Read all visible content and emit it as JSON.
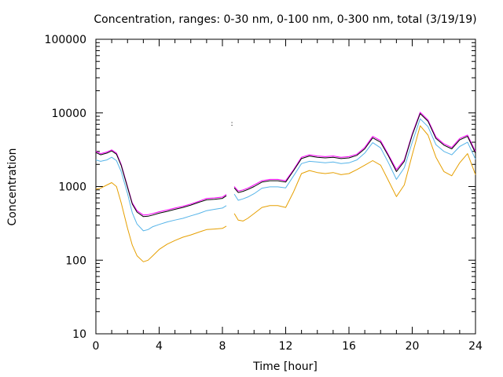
{
  "chart_data": {
    "type": "line",
    "title": "Concentration, ranges: 0-30 nm, 0-100 nm, 0-300 nm, total (3/19/19)",
    "xlabel": "Time [hour]",
    "ylabel": "Concentration",
    "xlim": [
      0,
      24
    ],
    "ylim": [
      10,
      100000
    ],
    "yscale": "log",
    "x_ticks": [
      0,
      4,
      8,
      12,
      16,
      20,
      24
    ],
    "x_tick_labels": [
      "0",
      "4",
      "8",
      "12",
      "16",
      "20",
      "24"
    ],
    "y_ticks": [
      10,
      100,
      1000,
      10000,
      100000
    ],
    "y_tick_labels": [
      "10",
      "100",
      "1000",
      "10000",
      "100000"
    ],
    "grid": false,
    "legend": "none",
    "x": [
      0.0,
      0.3,
      0.7,
      1.0,
      1.3,
      1.6,
      2.0,
      2.3,
      2.6,
      3.0,
      3.3,
      3.6,
      4.0,
      4.5,
      5.0,
      5.5,
      6.0,
      6.5,
      7.0,
      7.5,
      8.0,
      8.25,
      8.5,
      8.75,
      9.0,
      9.3,
      9.6,
      10.0,
      10.5,
      11.0,
      11.5,
      12.0,
      12.5,
      13.0,
      13.5,
      14.0,
      14.5,
      15.0,
      15.5,
      16.0,
      16.5,
      17.0,
      17.5,
      18.0,
      18.5,
      19.0,
      19.5,
      20.0,
      20.5,
      21.0,
      21.5,
      22.0,
      22.5,
      23.0,
      23.5,
      24.0
    ],
    "series": [
      {
        "color": "#ff00ff",
        "values": [
          3000,
          2800,
          2950,
          3150,
          2850,
          2000,
          1000,
          600,
          470,
          410,
          415,
          430,
          455,
          480,
          510,
          540,
          580,
          630,
          690,
          700,
          720,
          780,
          null,
          1000,
          870,
          900,
          950,
          1050,
          1200,
          1250,
          1250,
          1200,
          1700,
          2500,
          2700,
          2600,
          2550,
          2600,
          2500,
          2550,
          2750,
          3400,
          4800,
          4200,
          2700,
          1700,
          2300,
          5200,
          10200,
          8000,
          4700,
          3800,
          3400,
          4500,
          5000,
          3000
        ]
      },
      {
        "color": "#000000",
        "values": [
          2900,
          2700,
          2850,
          3050,
          2750,
          1930,
          970,
          580,
          450,
          390,
          395,
          410,
          435,
          460,
          490,
          520,
          560,
          610,
          660,
          670,
          690,
          750,
          null,
          960,
          830,
          860,
          910,
          1000,
          1150,
          1200,
          1200,
          1150,
          1650,
          2400,
          2600,
          2500,
          2450,
          2500,
          2400,
          2450,
          2650,
          3250,
          4600,
          4000,
          2600,
          1600,
          2200,
          5000,
          9800,
          7700,
          4500,
          3650,
          3250,
          4300,
          4800,
          2850
        ]
      },
      {
        "color": "#56b4e9",
        "values": [
          2300,
          2200,
          2300,
          2500,
          2250,
          1600,
          800,
          440,
          310,
          250,
          260,
          285,
          305,
          330,
          350,
          370,
          400,
          430,
          470,
          490,
          510,
          550,
          null,
          790,
          650,
          680,
          720,
          800,
          950,
          990,
          990,
          960,
          1400,
          2050,
          2200,
          2150,
          2100,
          2150,
          2050,
          2100,
          2300,
          2850,
          3950,
          3350,
          2100,
          1250,
          1800,
          4000,
          8300,
          6500,
          3700,
          3000,
          2700,
          3500,
          4000,
          2350
        ]
      },
      {
        "color": "#e69f00",
        "values": [
          920,
          950,
          1050,
          1130,
          1000,
          600,
          270,
          160,
          115,
          95,
          100,
          115,
          140,
          165,
          185,
          205,
          220,
          240,
          260,
          265,
          270,
          290,
          null,
          430,
          350,
          340,
          370,
          430,
          520,
          550,
          550,
          520,
          850,
          1500,
          1650,
          1550,
          1500,
          1550,
          1450,
          1500,
          1700,
          1950,
          2250,
          1950,
          1200,
          730,
          1050,
          2700,
          6700,
          5000,
          2500,
          1600,
          1400,
          2100,
          2800,
          1450
        ]
      }
    ],
    "stray_points": [
      {
        "x": 8.6,
        "y": 7400
      },
      {
        "x": 8.6,
        "y": 6800
      }
    ]
  }
}
